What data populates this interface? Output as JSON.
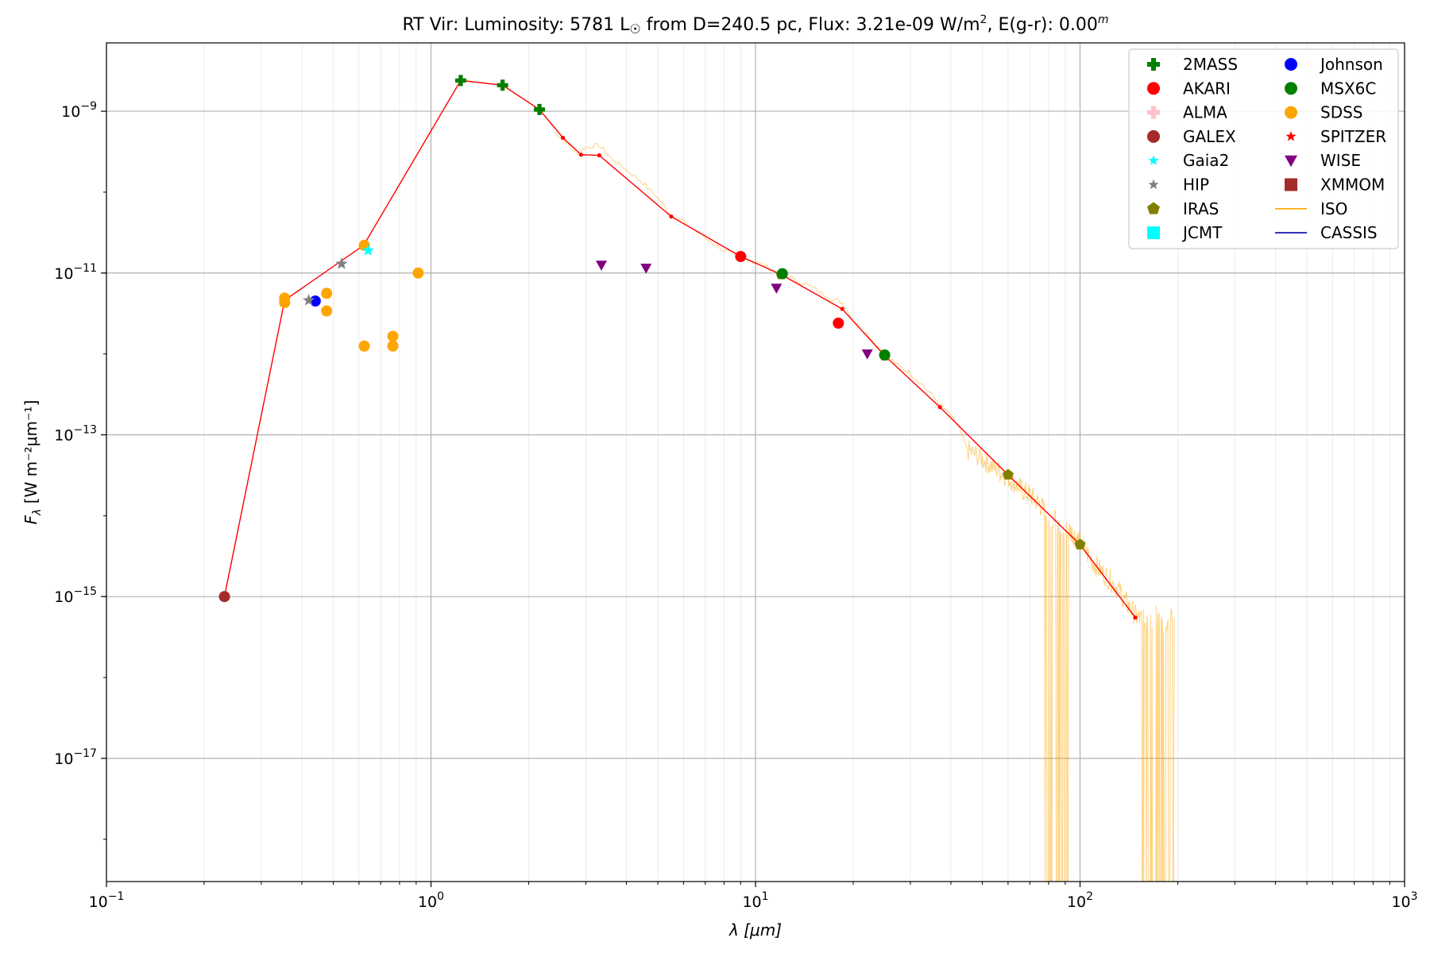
{
  "chart_data": {
    "type": "scatter",
    "title": {
      "star": "RT Vir:",
      "lum_label": "Luminosity: 5781 L",
      "lum_unit_symbol": "☉",
      "distance": "from D=240.5 pc,",
      "flux_label": "Flux: 3.21e-09 W/m",
      "flux_exp": "2",
      "ext_label": ", E(g-r): 0.00",
      "ext_sup": "m"
    },
    "xlabel": "λ [μm]",
    "ylabel": "F",
    "ylabel_sub": "λ",
    "ylabel_units": "[W m⁻²μm⁻¹]",
    "x_scale": "log",
    "y_scale": "log",
    "xlim": [
      0.1,
      1000
    ],
    "ylim": [
      3e-19,
      7e-09
    ],
    "x_ticks": [
      {
        "value": 0.1,
        "base": "10",
        "exp": "−1"
      },
      {
        "value": 1,
        "base": "10",
        "exp": "0"
      },
      {
        "value": 10,
        "base": "10",
        "exp": "1"
      },
      {
        "value": 100,
        "base": "10",
        "exp": "2"
      },
      {
        "value": 1000,
        "base": "10",
        "exp": "3"
      }
    ],
    "y_ticks": [
      {
        "value": 1e-09,
        "base": "10",
        "exp": "−9"
      },
      {
        "value": 1e-11,
        "base": "10",
        "exp": "−11"
      },
      {
        "value": 1e-13,
        "base": "10",
        "exp": "−13"
      },
      {
        "value": 1e-15,
        "base": "10",
        "exp": "−15"
      },
      {
        "value": 1e-17,
        "base": "10",
        "exp": "−17"
      }
    ],
    "grid": true,
    "legend_position": "top-right",
    "legend": [
      {
        "name": "2MASS",
        "marker": "plus",
        "color": "#008000"
      },
      {
        "name": "AKARI",
        "marker": "circle",
        "color": "#ff0000"
      },
      {
        "name": "ALMA",
        "marker": "plus",
        "color": "#ffc0cb"
      },
      {
        "name": "GALEX",
        "marker": "circle",
        "color": "#a52a2a"
      },
      {
        "name": "Gaia2",
        "marker": "star",
        "color": "#00ffff"
      },
      {
        "name": "HIP",
        "marker": "star",
        "color": "#808080"
      },
      {
        "name": "IRAS",
        "marker": "pentagon",
        "color": "#808000"
      },
      {
        "name": "JCMT",
        "marker": "square",
        "color": "#00ffff"
      },
      {
        "name": "Johnson",
        "marker": "circle",
        "color": "#0000ff"
      },
      {
        "name": "MSX6C",
        "marker": "circle",
        "color": "#008000"
      },
      {
        "name": "SDSS",
        "marker": "circle",
        "color": "#ffa500"
      },
      {
        "name": "SPITZER",
        "marker": "star",
        "color": "#ff0000"
      },
      {
        "name": "WISE",
        "marker": "triangle-down",
        "color": "#800080"
      },
      {
        "name": "XMMOM",
        "marker": "square",
        "color": "#a52a2a"
      },
      {
        "name": "ISO",
        "marker": "line",
        "color": "#ffa500"
      },
      {
        "name": "CASSIS",
        "marker": "line",
        "color": "#0000aa"
      }
    ],
    "model_line": {
      "color": "#ff0000",
      "points": [
        [
          0.231,
          1e-15
        ],
        [
          0.354,
          4.6e-12
        ],
        [
          0.62,
          2.2e-11
        ],
        [
          1.235,
          2.4e-09
        ],
        [
          1.662,
          2.1e-09
        ],
        [
          2.159,
          1.05e-09
        ],
        [
          2.55,
          4.7e-10
        ],
        [
          2.9,
          2.9e-10
        ],
        [
          3.3,
          2.85e-10
        ],
        [
          5.5,
          5e-11
        ],
        [
          9.0,
          1.6e-11
        ],
        [
          12.0,
          9.6e-12
        ],
        [
          18.5,
          3.6e-12
        ],
        [
          25.0,
          9.5e-13
        ],
        [
          37.0,
          2.2e-13
        ],
        [
          60.0,
          3.2e-14
        ],
        [
          100.0,
          4.4e-15
        ],
        [
          148.0,
          5.5e-16
        ]
      ]
    },
    "observations": [
      {
        "name": "GALEX",
        "marker": "circle",
        "color": "#a52a2a",
        "points": [
          [
            0.231,
            1e-15
          ]
        ]
      },
      {
        "name": "SDSS",
        "marker": "circle",
        "color": "#ffa500",
        "points": [
          [
            0.354,
            4.9e-12
          ],
          [
            0.354,
            4.3e-12
          ],
          [
            0.477,
            5.6e-12
          ],
          [
            0.477,
            3.4e-12
          ],
          [
            0.623,
            2.2e-11
          ],
          [
            0.623,
            1.25e-12
          ],
          [
            0.763,
            1.65e-12
          ],
          [
            0.763,
            1.25e-12
          ],
          [
            0.913,
            1e-11
          ]
        ]
      },
      {
        "name": "Johnson",
        "marker": "circle",
        "color": "#0000ff",
        "points": [
          [
            0.44,
            4.5e-12
          ]
        ]
      },
      {
        "name": "HIP",
        "marker": "star",
        "color": "#808080",
        "points": [
          [
            0.42,
            4.6e-12
          ],
          [
            0.53,
            1.3e-11
          ]
        ]
      },
      {
        "name": "Gaia2",
        "marker": "star",
        "color": "#00ffff",
        "points": [
          [
            0.64,
            1.9e-11
          ]
        ]
      },
      {
        "name": "2MASS",
        "marker": "plus",
        "color": "#008000",
        "points": [
          [
            1.235,
            2.4e-09
          ],
          [
            1.662,
            2.1e-09
          ],
          [
            2.159,
            1.05e-09
          ]
        ]
      },
      {
        "name": "WISE",
        "marker": "triangle-down",
        "color": "#800080",
        "points": [
          [
            3.35,
            1.25e-11
          ],
          [
            4.6,
            1.15e-11
          ],
          [
            11.6,
            6.5e-12
          ],
          [
            22.1,
            1e-12
          ]
        ]
      },
      {
        "name": "AKARI",
        "marker": "circle",
        "color": "#ff0000",
        "points": [
          [
            9.0,
            1.6e-11
          ],
          [
            18.0,
            2.4e-12
          ]
        ]
      },
      {
        "name": "IRAS",
        "marker": "pentagon",
        "color": "#808000",
        "points": [
          [
            12.0,
            9.6e-12
          ],
          [
            25.0,
            9.5e-13
          ],
          [
            60.0,
            3.2e-14
          ],
          [
            100.0,
            4.4e-15
          ]
        ]
      },
      {
        "name": "MSX6C",
        "marker": "circle",
        "color": "#008000",
        "points": [
          [
            12.1,
            9.8e-12
          ],
          [
            25.0,
            9.7e-13
          ]
        ]
      }
    ],
    "iso_spectrum": {
      "color": "#ffa500",
      "points": [
        [
          2.4,
          5.5e-10
        ],
        [
          2.6,
          4.2e-10
        ],
        [
          2.8,
          3e-10
        ],
        [
          3.0,
          3.6e-10
        ],
        [
          3.3,
          3.8e-10
        ],
        [
          3.6,
          2.6e-10
        ],
        [
          4.0,
          1.9e-10
        ],
        [
          4.5,
          1.3e-10
        ],
        [
          5.0,
          8.5e-11
        ],
        [
          5.5,
          5.2e-11
        ],
        [
          6.0,
          4.3e-11
        ],
        [
          7.0,
          2.7e-11
        ],
        [
          8.0,
          1.9e-11
        ],
        [
          9.0,
          1.6e-11
        ],
        [
          10.0,
          1.4e-11
        ],
        [
          11.0,
          1.15e-11
        ],
        [
          12.0,
          9.6e-12
        ],
        [
          13.0,
          8.6e-12
        ],
        [
          15.0,
          6.6e-12
        ],
        [
          17.0,
          4.9e-12
        ],
        [
          18.5,
          4.3e-12
        ],
        [
          20.0,
          2.6e-12
        ],
        [
          22.0,
          1.8e-12
        ],
        [
          25.0,
          1e-12
        ],
        [
          28.0,
          6.8e-13
        ],
        [
          30.0,
          5.8e-13
        ],
        [
          33.0,
          4e-13
        ],
        [
          37.0,
          2.4e-13
        ],
        [
          40.0,
          1.7e-13
        ],
        [
          42.0,
          1.3e-13
        ],
        [
          45.0,
          6.5e-14
        ],
        [
          50.0,
          5e-14
        ],
        [
          55.0,
          3.8e-14
        ],
        [
          60.0,
          3e-14
        ],
        [
          65.0,
          2.2e-14
        ],
        [
          70.0,
          1.8e-14
        ],
        [
          75.0,
          1.4e-14
        ],
        [
          80.0,
          1e-14
        ],
        [
          85.0,
          8.5e-15
        ],
        [
          90.0,
          7.5e-15
        ],
        [
          95.0,
          6e-15
        ],
        [
          100.0,
          4.6e-15
        ],
        [
          110.0,
          2.6e-15
        ],
        [
          120.0,
          1.8e-15
        ],
        [
          130.0,
          1.3e-15
        ],
        [
          140.0,
          8e-16
        ],
        [
          150.0,
          5.5e-16
        ],
        [
          160.0,
          5e-16
        ],
        [
          170.0,
          6e-16
        ],
        [
          180.0,
          4.5e-16
        ],
        [
          195.0,
          5.5e-16
        ]
      ],
      "dips": [
        [
          78.0,
          82.0
        ],
        [
          84.0,
          92.0
        ],
        [
          155.0,
          195.0
        ]
      ],
      "noise_range": [
        45.0,
        195.0
      ]
    }
  }
}
